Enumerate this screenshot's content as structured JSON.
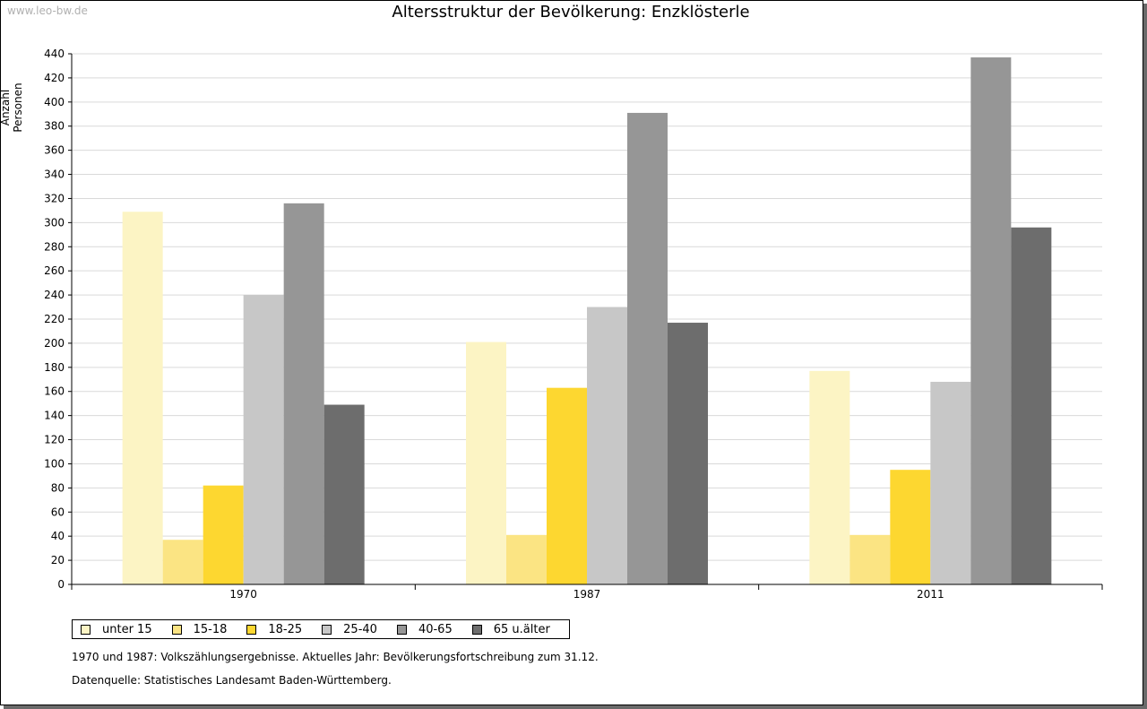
{
  "watermark": "www.leo-bw.de",
  "footnote": "1970 und 1987: Volkszählungsergebnisse. Aktuelles Jahr: Bevölkerungsfortschreibung zum 31.12.",
  "source": "Datenquelle: Statistisches Landesamt Baden-Württemberg.",
  "chart_data": {
    "type": "bar",
    "title": "Altersstruktur der Bevölkerung: Enzklösterle",
    "xlabel": "",
    "ylabel": "Anzahl Personen",
    "ylim": [
      0,
      440
    ],
    "ytick_step": 20,
    "grid": true,
    "legend_position": "bottom-left",
    "categories": [
      "1970",
      "1987",
      "2011"
    ],
    "series": [
      {
        "name": "unter 15",
        "color": "#fcf4c4",
        "values": [
          309,
          201,
          177
        ]
      },
      {
        "name": "15-18",
        "color": "#fbe483",
        "values": [
          37,
          41,
          41
        ]
      },
      {
        "name": "18-25",
        "color": "#fdd730",
        "values": [
          82,
          163,
          95
        ]
      },
      {
        "name": "25-40",
        "color": "#c7c7c7",
        "values": [
          240,
          230,
          168
        ]
      },
      {
        "name": "40-65",
        "color": "#969696",
        "values": [
          316,
          391,
          437
        ]
      },
      {
        "name": "65 u.älter",
        "color": "#6d6d6d",
        "values": [
          149,
          217,
          296
        ]
      }
    ]
  }
}
